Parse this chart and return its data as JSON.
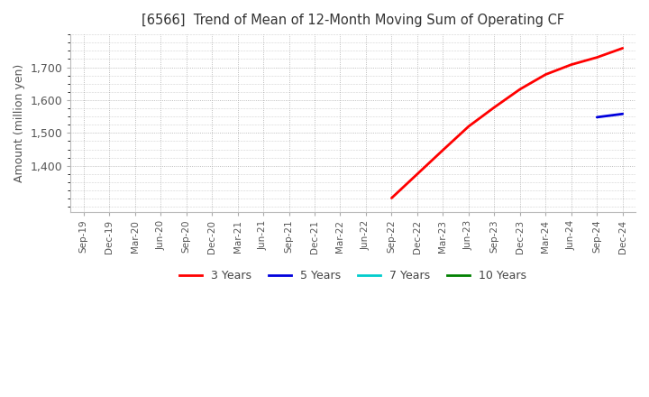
{
  "title": "[6566]  Trend of Mean of 12-Month Moving Sum of Operating CF",
  "ylabel": "Amount (million yen)",
  "title_color": "#333333",
  "background_color": "#ffffff",
  "plot_bg_color": "#ffffff",
  "grid_color": "#aaaaaa",
  "lines": {
    "3 Years": {
      "color": "#ff0000",
      "x": [
        "Sep-22",
        "Dec-22",
        "Mar-23",
        "Jun-23",
        "Sep-23",
        "Dec-23",
        "Mar-24",
        "Jun-24",
        "Sep-24",
        "Dec-24"
      ],
      "y": [
        1302,
        1375,
        1448,
        1520,
        1578,
        1633,
        1678,
        1708,
        1730,
        1758
      ]
    },
    "5 Years": {
      "color": "#0000dd",
      "x": [
        "Sep-24",
        "Dec-24"
      ],
      "y": [
        1548,
        1558
      ]
    },
    "7 Years": {
      "color": "#00cccc",
      "x": [],
      "y": []
    },
    "10 Years": {
      "color": "#008000",
      "x": [],
      "y": []
    }
  },
  "x_ticks": [
    "Sep-19",
    "Dec-19",
    "Mar-20",
    "Jun-20",
    "Sep-20",
    "Dec-20",
    "Mar-21",
    "Jun-21",
    "Sep-21",
    "Dec-21",
    "Mar-22",
    "Jun-22",
    "Sep-22",
    "Dec-22",
    "Mar-23",
    "Jun-23",
    "Sep-23",
    "Dec-23",
    "Mar-24",
    "Jun-24",
    "Sep-24",
    "Dec-24"
  ],
  "ylim": [
    1260,
    1800
  ],
  "yticks": [
    1400,
    1500,
    1600,
    1700
  ],
  "legend_entries": [
    "3 Years",
    "5 Years",
    "7 Years",
    "10 Years"
  ],
  "legend_colors": [
    "#ff0000",
    "#0000dd",
    "#00cccc",
    "#008000"
  ]
}
